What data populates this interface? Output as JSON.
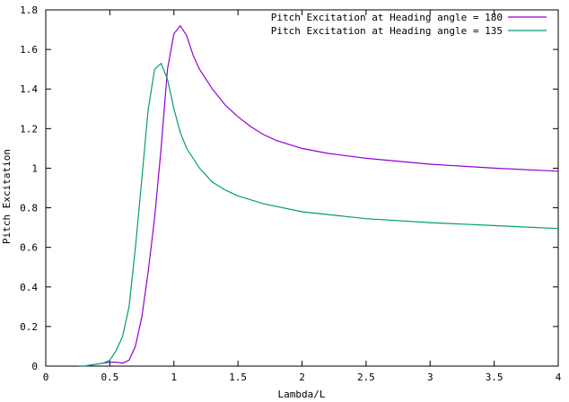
{
  "chart_data": {
    "type": "line",
    "xlabel": "Lambda/L",
    "ylabel": "Pitch Excitation",
    "xlim": [
      0,
      4
    ],
    "ylim": [
      0,
      1.8
    ],
    "x_ticks": [
      0,
      0.5,
      1,
      1.5,
      2,
      2.5,
      3,
      3.5,
      4
    ],
    "x_tick_labels": [
      "0",
      "0.5",
      "1",
      "1.5",
      "2",
      "2.5",
      "3",
      "3.5",
      "4"
    ],
    "y_ticks": [
      0,
      0.2,
      0.4,
      0.6,
      0.8,
      1,
      1.2,
      1.4,
      1.6,
      1.8
    ],
    "y_tick_labels": [
      "0",
      "0.2",
      "0.4",
      "0.6",
      "0.8",
      "1",
      "1.2",
      "1.4",
      "1.6",
      "1.8"
    ],
    "grid": false,
    "legend_position": "top-right",
    "series": [
      {
        "name": "Pitch Excitation at Heading angle = 180",
        "color": "#9400d3",
        "x": [
          0.25,
          0.3,
          0.35,
          0.4,
          0.45,
          0.5,
          0.55,
          0.6,
          0.65,
          0.7,
          0.75,
          0.8,
          0.85,
          0.9,
          0.95,
          1.0,
          1.05,
          1.1,
          1.15,
          1.2,
          1.3,
          1.4,
          1.5,
          1.6,
          1.7,
          1.8,
          2.0,
          2.2,
          2.5,
          3.0,
          3.5,
          4.0
        ],
        "y": [
          0.0,
          0.0,
          0.005,
          0.01,
          0.015,
          0.02,
          0.02,
          0.015,
          0.03,
          0.1,
          0.25,
          0.48,
          0.75,
          1.1,
          1.5,
          1.68,
          1.72,
          1.67,
          1.57,
          1.5,
          1.4,
          1.32,
          1.26,
          1.21,
          1.17,
          1.14,
          1.1,
          1.075,
          1.05,
          1.02,
          1.0,
          0.985
        ]
      },
      {
        "name": "Pitch Excitation at Heading angle = 135",
        "color": "#009e73",
        "x": [
          0.25,
          0.3,
          0.35,
          0.4,
          0.45,
          0.5,
          0.55,
          0.6,
          0.65,
          0.7,
          0.75,
          0.8,
          0.85,
          0.9,
          0.95,
          1.0,
          1.05,
          1.1,
          1.2,
          1.3,
          1.4,
          1.5,
          1.7,
          2.0,
          2.5,
          3.0,
          3.5,
          4.0
        ],
        "y": [
          0.0,
          0.0,
          0.005,
          0.01,
          0.015,
          0.03,
          0.08,
          0.15,
          0.3,
          0.6,
          0.95,
          1.3,
          1.5,
          1.53,
          1.45,
          1.3,
          1.18,
          1.1,
          1.0,
          0.93,
          0.89,
          0.86,
          0.82,
          0.78,
          0.745,
          0.725,
          0.71,
          0.695
        ]
      }
    ]
  }
}
